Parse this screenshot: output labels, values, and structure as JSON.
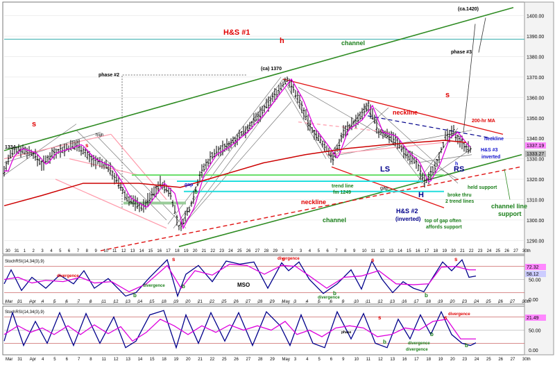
{
  "chart_data": [
    {
      "type": "candlestick",
      "panel": "price",
      "ylim": [
        1284,
        1406
      ],
      "y_ticks": [
        1290,
        1300,
        1310,
        1320,
        1330,
        1340,
        1350,
        1360,
        1370,
        1380,
        1390,
        1400
      ],
      "last_price_labels": [
        "1337.19",
        "1333.27"
      ],
      "left_price_label": "1334",
      "ohlc_anchors": [
        {
          "x": 0,
          "y": 1324
        },
        {
          "x": 8,
          "y": 1331
        },
        {
          "x": 20,
          "y": 1335
        },
        {
          "x": 40,
          "y": 1333
        },
        {
          "x": 55,
          "y": 1327
        },
        {
          "x": 70,
          "y": 1333
        },
        {
          "x": 90,
          "y": 1335
        },
        {
          "x": 106,
          "y": 1337
        },
        {
          "x": 125,
          "y": 1330
        },
        {
          "x": 150,
          "y": 1326
        },
        {
          "x": 165,
          "y": 1318
        },
        {
          "x": 176,
          "y": 1311
        },
        {
          "x": 200,
          "y": 1306
        },
        {
          "x": 225,
          "y": 1318
        },
        {
          "x": 240,
          "y": 1313
        },
        {
          "x": 252,
          "y": 1296
        },
        {
          "x": 268,
          "y": 1306
        },
        {
          "x": 282,
          "y": 1322
        },
        {
          "x": 300,
          "y": 1332
        },
        {
          "x": 320,
          "y": 1336
        },
        {
          "x": 345,
          "y": 1343
        },
        {
          "x": 370,
          "y": 1352
        },
        {
          "x": 392,
          "y": 1362
        },
        {
          "x": 408,
          "y": 1369
        },
        {
          "x": 425,
          "y": 1359
        },
        {
          "x": 440,
          "y": 1346
        },
        {
          "x": 460,
          "y": 1337
        },
        {
          "x": 475,
          "y": 1330
        },
        {
          "x": 490,
          "y": 1344
        },
        {
          "x": 510,
          "y": 1349
        },
        {
          "x": 525,
          "y": 1356
        },
        {
          "x": 540,
          "y": 1343
        },
        {
          "x": 560,
          "y": 1341
        },
        {
          "x": 578,
          "y": 1333
        },
        {
          "x": 592,
          "y": 1329
        },
        {
          "x": 607,
          "y": 1318
        },
        {
          "x": 622,
          "y": 1327
        },
        {
          "x": 636,
          "y": 1340
        },
        {
          "x": 648,
          "y": 1343
        },
        {
          "x": 662,
          "y": 1337
        },
        {
          "x": 672,
          "y": 1334
        }
      ],
      "x_labels_top": [
        "30",
        "31",
        "1",
        "2",
        "3",
        "4",
        "5",
        "6",
        "7",
        "8",
        "9",
        "10",
        "11",
        "12",
        "13",
        "14",
        "15",
        "16",
        "17",
        "18",
        "19",
        "20",
        "21",
        "22",
        "23",
        "24",
        "25",
        "26",
        "27",
        "28",
        "29",
        "1",
        "2",
        "3",
        "4",
        "5",
        "6",
        "7",
        "8",
        "9",
        "10",
        "11",
        "12",
        "13",
        "14",
        "15",
        "16",
        "17",
        "18",
        "19",
        "20",
        "21",
        "22",
        "23",
        "24",
        "25",
        "26",
        "27",
        "30th"
      ],
      "annotations": {
        "hs1": "H&S #1",
        "h_small": "h",
        "channel_top": "channel",
        "ca1420": "(ca.1420)",
        "phase3": "phase #3",
        "phase2": "phase #2",
        "ca1370": "(ca) 1370",
        "s_right": "s",
        "s_left": "s",
        "high": "high",
        "neckline_top": "neckline",
        "ma200": "200-hr MA",
        "neckline_blue": "neckline",
        "hs3": "H&S #3",
        "inverted3": "inverted",
        "ls": "LS",
        "rs": "RS",
        "h_big": "H",
        "gap_left": "gap",
        "gap_right": "gap",
        "trendline": "trend line",
        "trendline2": "fm 1249",
        "neckline_bottom": "neckline",
        "hs2": "H&S #2",
        "inverted2": "(inverted)",
        "held_support": "held support",
        "broke_thru": "broke thru",
        "broke_thru2": "2 trend lines",
        "channel_support": "channel line",
        "channel_support2": "support",
        "channel_bottom": "channel",
        "top_of_gap": "top of gap often",
        "top_of_gap2": "affords support",
        "b_left": "b",
        "h_inv": "h",
        "s_small": "s"
      }
    },
    {
      "type": "line",
      "panel": "stoch_1",
      "title": "StochRSI(14,34(3),9)",
      "ylim": [
        0,
        100
      ],
      "y_ticks": [
        "50.00",
        "0.00"
      ],
      "last_value_labels": [
        "72.32",
        "58.12"
      ],
      "series": [
        {
          "name": "StochRSI",
          "color": "#00008b",
          "x": [
            0,
            10,
            25,
            40,
            60,
            80,
            100,
            115,
            130,
            150,
            175,
            190,
            210,
            235,
            250,
            262,
            280,
            300,
            320,
            340,
            360,
            380,
            400,
            410,
            425,
            440,
            460,
            480,
            500,
            515,
            530,
            545,
            560,
            575,
            590,
            605,
            620,
            632,
            645,
            660,
            670,
            680
          ],
          "values": [
            40,
            72,
            25,
            55,
            30,
            60,
            40,
            70,
            30,
            52,
            12,
            20,
            55,
            95,
            12,
            62,
            82,
            45,
            92,
            85,
            90,
            30,
            88,
            70,
            90,
            50,
            18,
            40,
            72,
            28,
            92,
            50,
            20,
            45,
            30,
            22,
            60,
            90,
            70,
            95,
            55,
            58
          ]
        },
        {
          "name": "%D",
          "color": "#dd00dd",
          "x": [
            0,
            20,
            40,
            60,
            85,
            110,
            130,
            155,
            180,
            205,
            235,
            255,
            275,
            300,
            325,
            350,
            375,
            400,
            420,
            440,
            465,
            490,
            515,
            540,
            565,
            590,
            612,
            630,
            650,
            670,
            680
          ],
          "values": [
            50,
            55,
            42,
            48,
            45,
            55,
            42,
            45,
            22,
            40,
            82,
            30,
            70,
            60,
            85,
            82,
            62,
            82,
            80,
            58,
            30,
            55,
            58,
            70,
            40,
            38,
            40,
            78,
            80,
            72,
            72
          ]
        }
      ],
      "annotations": {
        "s1": "s",
        "s2": "s",
        "s3": "s",
        "s4": "s",
        "divergence1": "divergence",
        "divergence2": "divergence",
        "divergence3": "divergence",
        "divergence4": "divergence",
        "b1": "b",
        "b2": "b",
        "b3": "b",
        "b4": "b",
        "mso": "MSO"
      },
      "x_labels": [
        "Mar",
        "31",
        "Apr",
        "4",
        "5",
        "6",
        "7",
        "8",
        "11",
        "12",
        "13",
        "14",
        "15",
        "18",
        "19",
        "20",
        "21",
        "22",
        "25",
        "26",
        "27",
        "28",
        "29",
        "May",
        "3",
        "4",
        "5",
        "6",
        "9",
        "10",
        "11",
        "12",
        "13",
        "16",
        "17",
        "18",
        "19",
        "20",
        "23",
        "24",
        "25",
        "26",
        "27",
        "30th"
      ]
    },
    {
      "type": "line",
      "panel": "stoch_2",
      "title": "StochRSI(14,34(3),9)",
      "ylim": [
        0,
        100
      ],
      "y_ticks": [
        "50.00",
        "0.00"
      ],
      "last_value_labels": [
        "21.49"
      ],
      "series": [
        {
          "name": "StochRSI",
          "color": "#00008b",
          "x": [
            0,
            12,
            28,
            45,
            62,
            80,
            100,
            118,
            138,
            158,
            175,
            190,
            210,
            230,
            248,
            262,
            280,
            298,
            318,
            338,
            358,
            378,
            398,
            412,
            428,
            445,
            462,
            480,
            500,
            518,
            535,
            552,
            568,
            585,
            600,
            615,
            630,
            645,
            660,
            672,
            680
          ],
          "values": [
            25,
            90,
            15,
            70,
            20,
            90,
            15,
            88,
            20,
            80,
            10,
            25,
            85,
            95,
            10,
            85,
            20,
            90,
            25,
            90,
            15,
            92,
            60,
            15,
            85,
            20,
            10,
            92,
            30,
            88,
            20,
            10,
            75,
            30,
            85,
            40,
            92,
            40,
            20,
            15,
            21
          ]
        },
        {
          "name": "%D",
          "color": "#dd00dd",
          "x": [
            0,
            20,
            38,
            55,
            72,
            92,
            110,
            130,
            150,
            168,
            185,
            205,
            225,
            245,
            265,
            285,
            305,
            325,
            345,
            365,
            385,
            405,
            422,
            440,
            458,
            478,
            498,
            518,
            538,
            558,
            578,
            598,
            618,
            638,
            658,
            680
          ],
          "values": [
            40,
            60,
            45,
            55,
            40,
            60,
            40,
            62,
            42,
            58,
            25,
            45,
            75,
            60,
            40,
            60,
            45,
            62,
            50,
            60,
            50,
            70,
            40,
            50,
            35,
            55,
            60,
            55,
            35,
            40,
            55,
            50,
            70,
            75,
            30,
            30
          ]
        }
      ],
      "annotations": {
        "divergence1": "divergence",
        "divergence2": "divergence",
        "divergence3": "divergence",
        "s1": "s",
        "s2": "s",
        "b1": "b",
        "b2": "b",
        "b3": "b",
        "phase": "phase"
      },
      "x_labels": [
        "Mar",
        "31",
        "Apr",
        "4",
        "5",
        "6",
        "7",
        "8",
        "11",
        "12",
        "13",
        "14",
        "15",
        "18",
        "19",
        "20",
        "21",
        "22",
        "25",
        "26",
        "27",
        "28",
        "29",
        "May",
        "3",
        "4",
        "5",
        "6",
        "9",
        "10",
        "11",
        "12",
        "13",
        "16",
        "17",
        "18",
        "19",
        "20",
        "23",
        "24",
        "25",
        "26",
        "27",
        "30th"
      ]
    }
  ],
  "colors": {
    "background": "#ffffff",
    "border": "#777777",
    "grid": "#dddddd",
    "channel": "#2e8b22",
    "neckline_red": "#e01010",
    "ma_red": "#cc0000",
    "cyan": "#22dddd",
    "lightgreen": "#66dd66",
    "pink": "#ff99aa",
    "navy": "#00008b",
    "magenta": "#dd00dd"
  }
}
